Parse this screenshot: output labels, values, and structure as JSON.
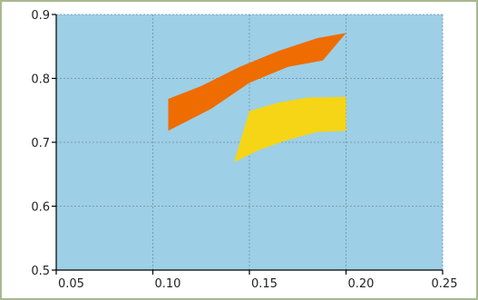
{
  "chart_data": {
    "type": "area",
    "title": "",
    "xlabel": "",
    "ylabel": "",
    "xlim": [
      0.05,
      0.25
    ],
    "ylim": [
      0.5,
      0.9
    ],
    "x_ticks": [
      0.05,
      0.1,
      0.15,
      0.2,
      0.25
    ],
    "x_tick_labels": [
      "0.05",
      "0.10",
      "0.15",
      "0.20",
      "0.25"
    ],
    "y_ticks": [
      0.5,
      0.6,
      0.7,
      0.8,
      0.9
    ],
    "y_tick_labels": [
      "0.5",
      "0.6",
      "0.7",
      "0.8",
      "0.9"
    ],
    "grid": true,
    "legend": "none",
    "background_color": "#9dcfe6",
    "grid_color": "#6e8fa3",
    "series": [
      {
        "color": "#ef6c00",
        "polygon": [
          [
            0.108,
            0.768
          ],
          [
            0.125,
            0.788
          ],
          [
            0.145,
            0.818
          ],
          [
            0.165,
            0.843
          ],
          [
            0.185,
            0.863
          ],
          [
            0.2,
            0.871
          ],
          [
            0.188,
            0.828
          ],
          [
            0.17,
            0.818
          ],
          [
            0.15,
            0.793
          ],
          [
            0.13,
            0.752
          ],
          [
            0.108,
            0.718
          ]
        ]
      },
      {
        "color": "#f5d516",
        "polygon": [
          [
            0.15,
            0.749
          ],
          [
            0.165,
            0.762
          ],
          [
            0.18,
            0.77
          ],
          [
            0.2,
            0.771
          ],
          [
            0.2,
            0.718
          ],
          [
            0.185,
            0.716
          ],
          [
            0.17,
            0.704
          ],
          [
            0.155,
            0.688
          ],
          [
            0.142,
            0.669
          ]
        ]
      }
    ]
  }
}
